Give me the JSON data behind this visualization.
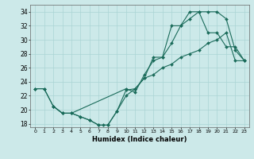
{
  "xlabel": "Humidex (Indice chaleur)",
  "xlim": [
    -0.5,
    23.5
  ],
  "ylim": [
    17.5,
    35
  ],
  "xticks": [
    0,
    1,
    2,
    3,
    4,
    5,
    6,
    7,
    8,
    9,
    10,
    11,
    12,
    13,
    14,
    15,
    16,
    17,
    18,
    19,
    20,
    21,
    22,
    23
  ],
  "yticks": [
    18,
    20,
    22,
    24,
    26,
    28,
    30,
    32,
    34
  ],
  "line_color": "#1a6b5a",
  "bg_color": "#cce9e9",
  "grid_color": "#aad4d4",
  "lines": [
    {
      "x": [
        0,
        1,
        2,
        3,
        4,
        10,
        11,
        12,
        13,
        14,
        15,
        16,
        17,
        18,
        19,
        20,
        21,
        22,
        23
      ],
      "y": [
        23,
        23,
        20.5,
        19.5,
        19.5,
        23,
        22.5,
        25,
        27,
        27.5,
        29.5,
        32,
        33,
        34,
        34,
        34,
        33,
        28.5,
        27
      ]
    },
    {
      "x": [
        2,
        3,
        4,
        5,
        6,
        7,
        7.5,
        8,
        9,
        10,
        11,
        12,
        13,
        14,
        15,
        16,
        17,
        18,
        19,
        20,
        21,
        22,
        23
      ],
      "y": [
        20.5,
        19.5,
        19.5,
        19,
        18.5,
        17.8,
        17.8,
        17.8,
        19.8,
        22.8,
        23,
        24.5,
        27.5,
        27.5,
        32,
        32,
        34,
        34,
        31,
        31,
        29,
        29,
        27
      ]
    },
    {
      "x": [
        0,
        1,
        2,
        3,
        4,
        5,
        6,
        7,
        8,
        9,
        10,
        11,
        12,
        13,
        14,
        15,
        16,
        17,
        18,
        19,
        20,
        21,
        22,
        23
      ],
      "y": [
        23,
        23,
        20.5,
        19.5,
        19.5,
        19,
        18.5,
        17.8,
        17.8,
        19.8,
        22,
        23,
        24.5,
        25,
        26,
        26.5,
        27.5,
        28,
        28.5,
        29.5,
        30,
        31,
        27,
        27
      ]
    }
  ]
}
